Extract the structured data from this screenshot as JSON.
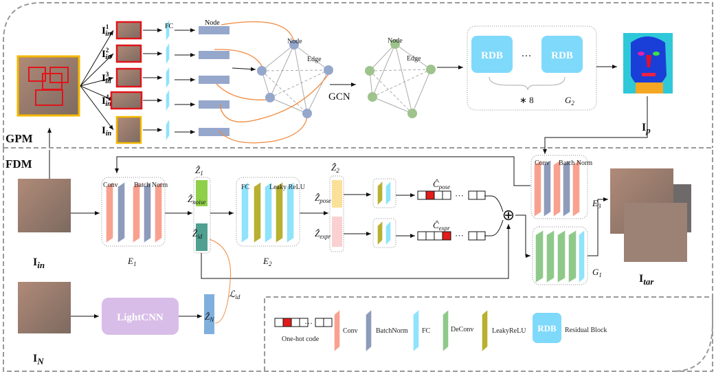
{
  "modules": {
    "gpm": "GPM",
    "fdm": "FDM"
  },
  "gpm": {
    "crop_labels": [
      {
        "main": "I",
        "sub": "in",
        "sup": "1"
      },
      {
        "main": "I",
        "sub": "in",
        "sup": "2"
      },
      {
        "main": "I",
        "sub": "in",
        "sup": "3"
      },
      {
        "main": "I",
        "sub": "in",
        "sup": "4"
      },
      {
        "main": "I",
        "sub": "in",
        "sup": ""
      }
    ],
    "fc_label": "FC",
    "node_label_bars": "Node",
    "graph_node_label": "Node",
    "graph_edge_label": "Edge",
    "gcn_label": "GCN",
    "gcn_node_label": "Node",
    "gcn_edge_label": "Edge",
    "rdb_label": "RDB",
    "ellipsis": "···",
    "repeat_label": "∗ 8",
    "g2_label": {
      "main": "G",
      "sub": "2"
    },
    "ip_label": {
      "main": "I",
      "sub": "p"
    }
  },
  "fdm": {
    "input_label": {
      "main": "I",
      "sub": "in"
    },
    "e1": {
      "conv": "Conv",
      "batchnorm": "Batch Norm",
      "label": {
        "main": "E",
        "sub": "1"
      }
    },
    "z1_label": {
      "main": "Ẑ",
      "sub": "1"
    },
    "z_noise": {
      "main": "Ẑ",
      "sub": "noise"
    },
    "z_id": {
      "main": "Ẑ",
      "sub": "id"
    },
    "e2": {
      "fc": "FC",
      "leaky": "Leaky ReLU",
      "label": {
        "main": "E",
        "sub": "2"
      }
    },
    "z2_label": {
      "main": "Ẑ",
      "sub": "2"
    },
    "z_pose": {
      "main": "Ẑ",
      "sub": "pose"
    },
    "z_expr": {
      "main": "Ẑ",
      "sub": "expr"
    },
    "c_pose": {
      "main": "Ĉ",
      "sub": "pose"
    },
    "c_expr": {
      "main": "Ĉ",
      "sub": "expr"
    },
    "ellipsis": "···",
    "plus": "⊕",
    "e3": {
      "conv": "Conv",
      "batchnorm": "Batch Norm",
      "label": {
        "main": "E",
        "sub": "3"
      }
    },
    "g1_label": {
      "main": "G",
      "sub": "1"
    },
    "tar_label": {
      "main": "I",
      "sub": "tar"
    },
    "n_label": {
      "main": "I",
      "sub": "N"
    },
    "lightcnn": "LightCNN",
    "zn_label": {
      "main": "Ẑ",
      "sub": "N"
    },
    "lid_label": {
      "main": "ℒ",
      "sub": "id"
    }
  },
  "legend": {
    "onehot": "One-hot code",
    "ellipsis": "···",
    "conv": "Conv",
    "batchnorm": "BatchNorm",
    "fc": "FC",
    "deconv": "DeConv",
    "leaky": "LeakyReLU",
    "rdb_box": "RDB",
    "rdb": "Residual  Block"
  },
  "colors": {
    "conv": "#f9a18f",
    "batchnorm": "#8e9bbb",
    "fc": "#8fe3fb",
    "deconv": "#8fc98a",
    "leaky": "#b8b030",
    "rdb": "#7fd9fb",
    "lightcnn": "#d8bde8",
    "node": "#96a7cc",
    "gcn_node": "#9ec38c",
    "edge_curve": "#f0883a",
    "crop_border": "#e0141a",
    "face_border": "#f5b800",
    "onehot_active": "#e21b1b"
  }
}
